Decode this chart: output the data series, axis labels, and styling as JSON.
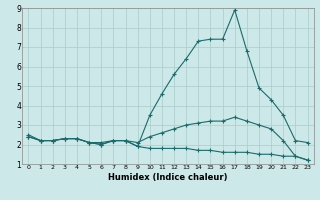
{
  "xlabel": "Humidex (Indice chaleur)",
  "x": [
    0,
    1,
    2,
    3,
    4,
    5,
    6,
    7,
    8,
    9,
    10,
    11,
    12,
    13,
    14,
    15,
    16,
    17,
    18,
    19,
    20,
    21,
    22,
    23
  ],
  "line_max": [
    2.5,
    2.2,
    2.2,
    2.3,
    2.3,
    2.1,
    2.0,
    2.2,
    2.2,
    1.9,
    3.5,
    4.6,
    5.6,
    6.4,
    7.3,
    7.4,
    7.4,
    8.9,
    6.8,
    4.9,
    4.3,
    3.5,
    2.2,
    2.1
  ],
  "line_mean": [
    2.4,
    2.2,
    2.2,
    2.3,
    2.3,
    2.1,
    2.1,
    2.2,
    2.2,
    2.1,
    2.4,
    2.6,
    2.8,
    3.0,
    3.1,
    3.2,
    3.2,
    3.4,
    3.2,
    3.0,
    2.8,
    2.2,
    1.4,
    1.2
  ],
  "line_min": [
    2.4,
    2.2,
    2.2,
    2.3,
    2.3,
    2.1,
    2.0,
    2.2,
    2.2,
    1.9,
    1.8,
    1.8,
    1.8,
    1.8,
    1.7,
    1.7,
    1.6,
    1.6,
    1.6,
    1.5,
    1.5,
    1.4,
    1.4,
    1.2
  ],
  "line_color": "#1a6b6b",
  "bg_color": "#cce8e8",
  "grid_color": "#aacccc",
  "ylim": [
    1,
    9
  ],
  "xlim": [
    -0.5,
    23.5
  ],
  "yticks": [
    1,
    2,
    3,
    4,
    5,
    6,
    7,
    8,
    9
  ],
  "xticks": [
    0,
    1,
    2,
    3,
    4,
    5,
    6,
    7,
    8,
    9,
    10,
    11,
    12,
    13,
    14,
    15,
    16,
    17,
    18,
    19,
    20,
    21,
    22,
    23
  ]
}
